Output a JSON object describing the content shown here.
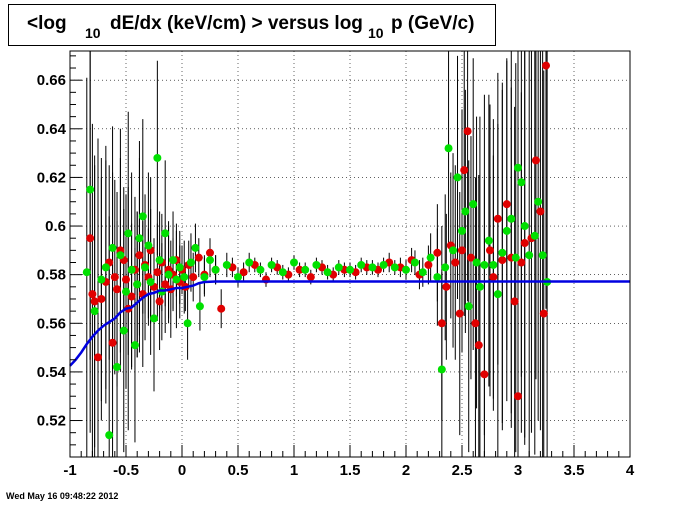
{
  "title": {
    "part1": "<log",
    "sub1": "10",
    "part2": "dE/dx (keV/cm) > versus log",
    "sub2": "10",
    "part3": "p (GeV/c)"
  },
  "footer": "Wed May 16 09:48:22 2012",
  "chart_data": {
    "type": "scatter",
    "title": "<log10 dE/dx (keV/cm) > versus log10 p (GeV/c)",
    "xlabel": "",
    "ylabel": "",
    "xlim": [
      -1,
      4
    ],
    "ylim": [
      0.505,
      0.672
    ],
    "xticks": [
      -1,
      -0.5,
      0,
      0.5,
      1,
      1.5,
      2,
      2.5,
      3,
      3.5,
      4
    ],
    "xtick_labels": [
      "-1",
      "-0.5",
      "0",
      "0.5",
      "1",
      "1.5",
      "2",
      "2.5",
      "3",
      "3.5",
      "4"
    ],
    "yticks": [
      0.52,
      0.54,
      0.56,
      0.58,
      0.6,
      0.62,
      0.64,
      0.66
    ],
    "ytick_labels": [
      "0.52",
      "0.54",
      "0.56",
      "0.58",
      "0.6",
      "0.62",
      "0.64",
      "0.66"
    ],
    "grid": true,
    "colors": {
      "series_red": "#e00000",
      "series_green": "#00e000",
      "fit_curve": "#0000e0",
      "error_bars": "#000000"
    },
    "series": [
      {
        "color": "red",
        "points": [
          [
            -0.82,
            0.595,
            0.08
          ],
          [
            -0.8,
            0.572,
            0.07
          ],
          [
            -0.78,
            0.569,
            0.06
          ],
          [
            -0.75,
            0.546,
            0.09
          ],
          [
            -0.72,
            0.57,
            0.05
          ],
          [
            -0.68,
            0.577,
            0.05
          ],
          [
            -0.65,
            0.585,
            0.04
          ],
          [
            -0.62,
            0.552,
            0.07
          ],
          [
            -0.6,
            0.579,
            0.04
          ],
          [
            -0.58,
            0.574,
            0.04
          ],
          [
            -0.55,
            0.59,
            0.05
          ],
          [
            -0.52,
            0.586,
            0.03
          ],
          [
            -0.5,
            0.578,
            0.03
          ],
          [
            -0.48,
            0.566,
            0.05
          ],
          [
            -0.45,
            0.571,
            0.03
          ],
          [
            -0.42,
            0.582,
            0.03
          ],
          [
            -0.4,
            0.576,
            0.03
          ],
          [
            -0.38,
            0.588,
            0.04
          ],
          [
            -0.35,
            0.572,
            0.03
          ],
          [
            -0.33,
            0.584,
            0.02
          ],
          [
            -0.3,
            0.579,
            0.02
          ],
          [
            -0.28,
            0.59,
            0.03
          ],
          [
            -0.25,
            0.575,
            0.02
          ],
          [
            -0.22,
            0.581,
            0.02
          ],
          [
            -0.2,
            0.569,
            0.02
          ],
          [
            -0.18,
            0.585,
            0.02
          ],
          [
            -0.15,
            0.576,
            0.02
          ],
          [
            -0.12,
            0.582,
            0.02
          ],
          [
            -0.1,
            0.574,
            0.02
          ],
          [
            -0.08,
            0.58,
            0.015
          ],
          [
            -0.05,
            0.586,
            0.015
          ],
          [
            -0.02,
            0.577,
            0.015
          ],
          [
            0.0,
            0.582,
            0.01
          ],
          [
            0.03,
            0.575,
            0.01
          ],
          [
            0.06,
            0.584,
            0.01
          ],
          [
            0.1,
            0.579,
            0.01
          ],
          [
            0.15,
            0.587,
            0.008
          ],
          [
            0.2,
            0.58,
            0.008
          ],
          [
            0.25,
            0.589,
            0.006
          ],
          [
            0.3,
            0.582,
            0.006
          ],
          [
            0.35,
            0.566,
            0.008
          ],
          [
            0.45,
            0.583,
            0.004
          ],
          [
            0.55,
            0.581,
            0.004
          ],
          [
            0.65,
            0.584,
            0.003
          ],
          [
            0.75,
            0.578,
            0.003
          ],
          [
            0.85,
            0.583,
            0.003
          ],
          [
            0.95,
            0.58,
            0.003
          ],
          [
            1.05,
            0.582,
            0.003
          ],
          [
            1.15,
            0.579,
            0.003
          ],
          [
            1.25,
            0.583,
            0.003
          ],
          [
            1.35,
            0.58,
            0.003
          ],
          [
            1.45,
            0.582,
            0.003
          ],
          [
            1.55,
            0.581,
            0.003
          ],
          [
            1.65,
            0.583,
            0.003
          ],
          [
            1.75,
            0.582,
            0.003
          ],
          [
            1.85,
            0.585,
            0.004
          ],
          [
            1.95,
            0.583,
            0.004
          ],
          [
            2.05,
            0.586,
            0.005
          ],
          [
            2.12,
            0.58,
            0.006
          ],
          [
            2.2,
            0.584,
            0.008
          ],
          [
            2.28,
            0.589,
            0.02
          ],
          [
            2.32,
            0.56,
            0.04
          ],
          [
            2.36,
            0.575,
            0.03
          ],
          [
            2.4,
            0.592,
            0.03
          ],
          [
            2.44,
            0.585,
            0.04
          ],
          [
            2.48,
            0.564,
            0.05
          ],
          [
            2.5,
            0.59,
            0.04
          ],
          [
            2.52,
            0.623,
            0.06
          ],
          [
            2.55,
            0.639,
            0.07
          ],
          [
            2.58,
            0.587,
            0.05
          ],
          [
            2.62,
            0.56,
            0.06
          ],
          [
            2.65,
            0.551,
            0.07
          ],
          [
            2.7,
            0.539,
            0.08
          ],
          [
            2.75,
            0.59,
            0.06
          ],
          [
            2.78,
            0.579,
            0.05
          ],
          [
            2.82,
            0.603,
            0.06
          ],
          [
            2.86,
            0.586,
            0.07
          ],
          [
            2.9,
            0.609,
            0.06
          ],
          [
            2.94,
            0.587,
            0.07
          ],
          [
            2.97,
            0.569,
            0.08
          ],
          [
            3.0,
            0.53,
            0.09
          ],
          [
            3.03,
            0.585,
            0.07
          ],
          [
            3.06,
            0.593,
            0.08
          ],
          [
            3.12,
            0.595,
            0.08
          ],
          [
            3.16,
            0.627,
            0.09
          ],
          [
            3.2,
            0.606,
            0.09
          ],
          [
            3.23,
            0.564,
            0.1
          ],
          [
            3.25,
            0.666,
            0.1
          ]
        ]
      },
      {
        "color": "green",
        "points": [
          [
            -0.85,
            0.581,
            0.08
          ],
          [
            -0.82,
            0.615,
            0.07
          ],
          [
            -0.78,
            0.565,
            0.06
          ],
          [
            -0.72,
            0.578,
            0.05
          ],
          [
            -0.68,
            0.583,
            0.05
          ],
          [
            -0.65,
            0.514,
            0.09
          ],
          [
            -0.62,
            0.591,
            0.05
          ],
          [
            -0.58,
            0.542,
            0.06
          ],
          [
            -0.55,
            0.588,
            0.04
          ],
          [
            -0.52,
            0.557,
            0.05
          ],
          [
            -0.5,
            0.573,
            0.04
          ],
          [
            -0.48,
            0.597,
            0.05
          ],
          [
            -0.45,
            0.582,
            0.04
          ],
          [
            -0.42,
            0.551,
            0.04
          ],
          [
            -0.4,
            0.576,
            0.03
          ],
          [
            -0.38,
            0.595,
            0.04
          ],
          [
            -0.35,
            0.604,
            0.04
          ],
          [
            -0.33,
            0.583,
            0.03
          ],
          [
            -0.3,
            0.592,
            0.03
          ],
          [
            -0.28,
            0.577,
            0.03
          ],
          [
            -0.25,
            0.562,
            0.03
          ],
          [
            -0.22,
            0.628,
            0.04
          ],
          [
            -0.2,
            0.586,
            0.02
          ],
          [
            -0.18,
            0.573,
            0.02
          ],
          [
            -0.15,
            0.597,
            0.03
          ],
          [
            -0.12,
            0.58,
            0.02
          ],
          [
            -0.08,
            0.586,
            0.02
          ],
          [
            -0.05,
            0.578,
            0.02
          ],
          [
            -0.02,
            0.583,
            0.015
          ],
          [
            0.02,
            0.579,
            0.015
          ],
          [
            0.05,
            0.56,
            0.015
          ],
          [
            0.08,
            0.585,
            0.012
          ],
          [
            0.12,
            0.591,
            0.01
          ],
          [
            0.16,
            0.567,
            0.01
          ],
          [
            0.2,
            0.579,
            0.008
          ],
          [
            0.25,
            0.586,
            0.007
          ],
          [
            0.3,
            0.582,
            0.006
          ],
          [
            0.4,
            0.584,
            0.005
          ],
          [
            0.5,
            0.579,
            0.004
          ],
          [
            0.6,
            0.585,
            0.004
          ],
          [
            0.7,
            0.582,
            0.003
          ],
          [
            0.8,
            0.584,
            0.003
          ],
          [
            0.9,
            0.581,
            0.003
          ],
          [
            1.0,
            0.585,
            0.003
          ],
          [
            1.1,
            0.582,
            0.003
          ],
          [
            1.2,
            0.584,
            0.003
          ],
          [
            1.3,
            0.581,
            0.003
          ],
          [
            1.4,
            0.583,
            0.003
          ],
          [
            1.5,
            0.582,
            0.003
          ],
          [
            1.6,
            0.584,
            0.003
          ],
          [
            1.7,
            0.583,
            0.003
          ],
          [
            1.8,
            0.584,
            0.003
          ],
          [
            1.9,
            0.583,
            0.003
          ],
          [
            2.0,
            0.582,
            0.004
          ],
          [
            2.08,
            0.585,
            0.005
          ],
          [
            2.15,
            0.581,
            0.006
          ],
          [
            2.22,
            0.587,
            0.01
          ],
          [
            2.28,
            0.579,
            0.02
          ],
          [
            2.32,
            0.541,
            0.04
          ],
          [
            2.35,
            0.583,
            0.03
          ],
          [
            2.38,
            0.632,
            0.04
          ],
          [
            2.42,
            0.59,
            0.04
          ],
          [
            2.46,
            0.62,
            0.05
          ],
          [
            2.5,
            0.598,
            0.05
          ],
          [
            2.53,
            0.606,
            0.05
          ],
          [
            2.56,
            0.567,
            0.06
          ],
          [
            2.6,
            0.609,
            0.06
          ],
          [
            2.63,
            0.585,
            0.06
          ],
          [
            2.66,
            0.575,
            0.07
          ],
          [
            2.7,
            0.584,
            0.07
          ],
          [
            2.74,
            0.594,
            0.06
          ],
          [
            2.78,
            0.584,
            0.06
          ],
          [
            2.82,
            0.572,
            0.07
          ],
          [
            2.86,
            0.589,
            0.07
          ],
          [
            2.9,
            0.598,
            0.07
          ],
          [
            2.94,
            0.603,
            0.08
          ],
          [
            2.98,
            0.587,
            0.08
          ],
          [
            3.0,
            0.624,
            0.08
          ],
          [
            3.03,
            0.618,
            0.08
          ],
          [
            3.06,
            0.6,
            0.09
          ],
          [
            3.1,
            0.588,
            0.09
          ],
          [
            3.15,
            0.596,
            0.09
          ],
          [
            3.18,
            0.61,
            0.09
          ],
          [
            3.22,
            0.588,
            0.1
          ],
          [
            3.26,
            0.577,
            0.1
          ]
        ]
      }
    ],
    "fit_curve": {
      "color": "blue",
      "x": [
        -1.0,
        -0.95,
        -0.9,
        -0.85,
        -0.8,
        -0.75,
        -0.7,
        -0.65,
        -0.6,
        -0.55,
        -0.5,
        -0.45,
        -0.4,
        -0.35,
        -0.3,
        -0.25,
        -0.2,
        -0.15,
        -0.1,
        -0.05,
        0.0,
        0.05,
        0.1,
        0.15,
        0.2,
        0.3,
        0.5,
        1.0,
        2.0,
        3.0,
        4.0
      ],
      "y": [
        0.5425,
        0.545,
        0.548,
        0.5515,
        0.5545,
        0.557,
        0.559,
        0.5605,
        0.562,
        0.5645,
        0.566,
        0.5665,
        0.5685,
        0.5705,
        0.572,
        0.5725,
        0.5735,
        0.5735,
        0.574,
        0.5745,
        0.5745,
        0.575,
        0.5755,
        0.5765,
        0.577,
        0.5772,
        0.5772,
        0.5772,
        0.5772,
        0.5772,
        0.5772
      ]
    }
  }
}
